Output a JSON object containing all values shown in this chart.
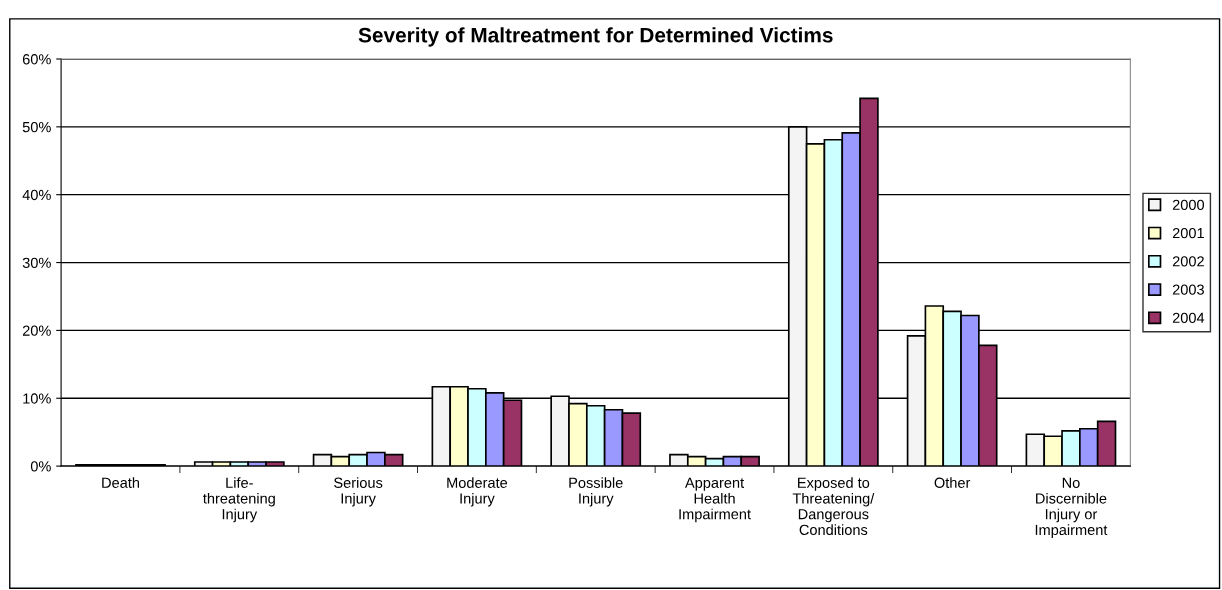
{
  "chart_data": {
    "type": "bar",
    "title": "Severity of Maltreatment for Determined Victims",
    "categories": [
      "Death",
      "Life-\nthreatening\nInjury",
      "Serious\nInjury",
      "Moderate\nInjury",
      "Possible\nInjury",
      "Apparent\nHealth\nImpairment",
      "Exposed to\nThreatening/\nDangerous\nConditions",
      "Other",
      "No\nDiscernible\nInjury or\nImpairment"
    ],
    "series": [
      {
        "name": "2000",
        "color": "#f4f4f4",
        "values": [
          0.2,
          0.6,
          1.7,
          11.7,
          10.3,
          1.7,
          50.0,
          19.2,
          4.7
        ]
      },
      {
        "name": "2001",
        "color": "#ffffcc",
        "values": [
          0.2,
          0.6,
          1.4,
          11.7,
          9.2,
          1.4,
          47.5,
          23.6,
          4.4
        ]
      },
      {
        "name": "2002",
        "color": "#ccffff",
        "values": [
          0.2,
          0.6,
          1.7,
          11.4,
          8.9,
          1.1,
          48.1,
          22.8,
          5.2
        ]
      },
      {
        "name": "2003",
        "color": "#9999ff",
        "values": [
          0.2,
          0.6,
          2.0,
          10.8,
          8.3,
          1.4,
          49.1,
          22.2,
          5.5
        ]
      },
      {
        "name": "2004",
        "color": "#993366",
        "values": [
          0.2,
          0.6,
          1.7,
          9.7,
          7.8,
          1.4,
          54.2,
          17.8,
          6.6
        ]
      }
    ],
    "ylim": [
      0,
      60
    ],
    "yticks": [
      {
        "value": 0,
        "label": "0%"
      },
      {
        "value": 10,
        "label": "10%"
      },
      {
        "value": 20,
        "label": "20%"
      },
      {
        "value": 30,
        "label": "30%"
      },
      {
        "value": 40,
        "label": "40%"
      },
      {
        "value": 50,
        "label": "50%"
      },
      {
        "value": 60,
        "label": "60%"
      }
    ],
    "grid": "y",
    "legend": "right"
  }
}
